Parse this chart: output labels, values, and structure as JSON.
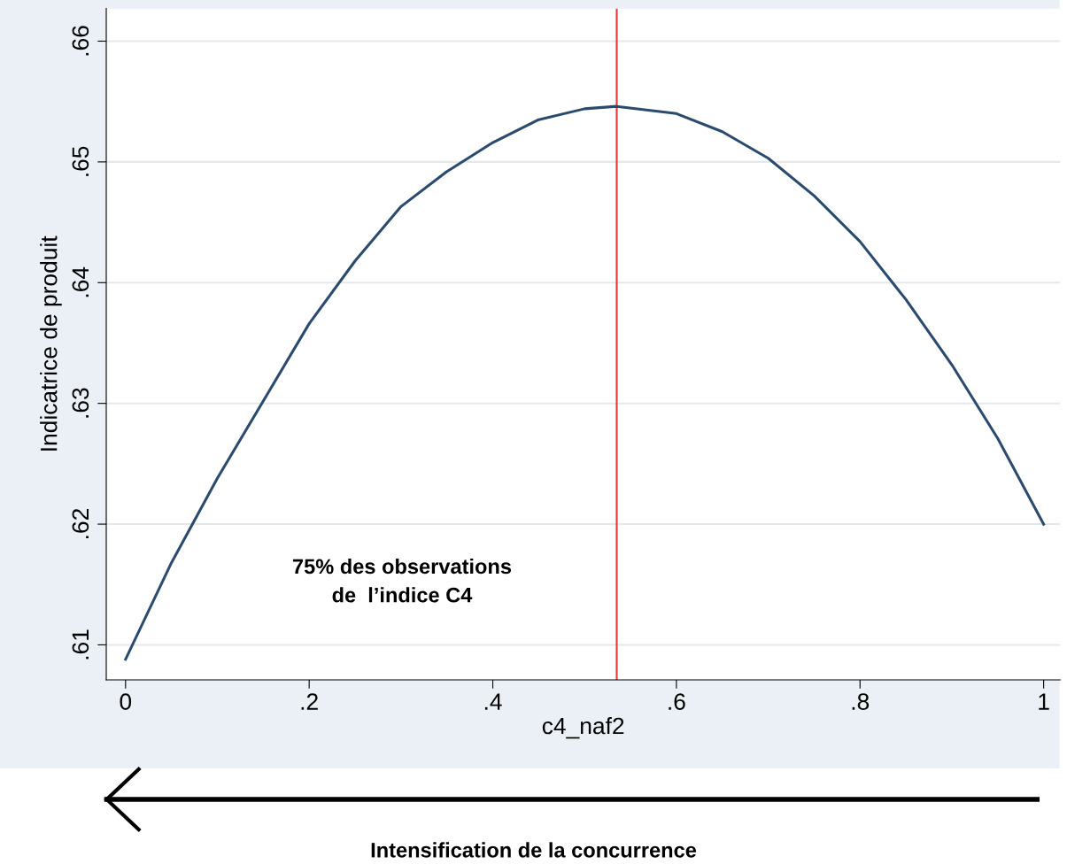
{
  "chart_data": {
    "type": "line",
    "xlabel": "c4_naf2",
    "ylabel": "Indicatrice de produit",
    "x": [
      0,
      0.05,
      0.1,
      0.15,
      0.2,
      0.25,
      0.3,
      0.35,
      0.4,
      0.45,
      0.5,
      0.535,
      0.6,
      0.65,
      0.7,
      0.75,
      0.8,
      0.85,
      0.9,
      0.95,
      1
    ],
    "series": [
      {
        "color": "#2a4a6e",
        "values": [
          0.6088,
          0.6168,
          0.6238,
          0.6302,
          0.6366,
          0.6418,
          0.6463,
          0.6492,
          0.6516,
          0.6535,
          0.6544,
          0.6546,
          0.654,
          0.6525,
          0.6503,
          0.6472,
          0.6434,
          0.6386,
          0.6332,
          0.6271,
          0.62
        ]
      }
    ],
    "xlim": [
      -0.021,
      1.018
    ],
    "ylim": [
      0.6071,
      0.6627
    ],
    "xticks": [
      0,
      {
        "value": 0.2,
        "label": ".2"
      },
      {
        "value": 0.4,
        "label": ".4"
      },
      {
        "value": 0.6,
        "label": ".6"
      },
      {
        "value": 0.8,
        "label": ".8"
      },
      1
    ],
    "yticks": [
      {
        "value": 0.61,
        "label": ".61"
      },
      {
        "value": 0.62,
        "label": ".62"
      },
      {
        "value": 0.63,
        "label": ".63"
      },
      {
        "value": 0.64,
        "label": ".64"
      },
      {
        "value": 0.65,
        "label": ".65"
      },
      {
        "value": 0.66,
        "label": ".66"
      }
    ],
    "grid": "y",
    "marker": "none",
    "line_style": "solid",
    "ref_lines": [
      {
        "axis": "x",
        "value": 0.535,
        "color": "#e8363a"
      }
    ],
    "annotations": [
      "75% des observations\nde  l’indice C4",
      "Intensification de la concurrence"
    ]
  }
}
